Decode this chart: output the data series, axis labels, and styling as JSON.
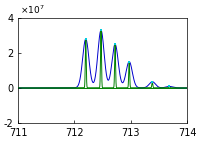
{
  "xlim": [
    711,
    714
  ],
  "ylim": [
    -20000000.0,
    40000000.0
  ],
  "xlabel_ticks": [
    711,
    712,
    713,
    714
  ],
  "ylabel_ticks": [
    -20000000.0,
    0,
    20000000.0,
    40000000.0
  ],
  "peaks": [
    {
      "x": 712.2,
      "amp": 28000000.0
    },
    {
      "x": 712.47,
      "amp": 33000000.0
    },
    {
      "x": 712.72,
      "amp": 25000000.0
    },
    {
      "x": 712.97,
      "amp": 15000000.0
    },
    {
      "x": 713.38,
      "amp": 3500000.0
    },
    {
      "x": 713.68,
      "amp": 800000.0
    }
  ],
  "sigma_green": 0.008,
  "sigma_blue": 0.055,
  "blue_scale": 1.0,
  "background_color": "#ffffff",
  "green_color": "#008000",
  "cyan_color": "#00ccdd",
  "blue_color": "#0000cc",
  "figsize": [
    2.0,
    1.41
  ],
  "dpi": 100,
  "tick_labelsize": 7,
  "exp_label": "x 10^7"
}
